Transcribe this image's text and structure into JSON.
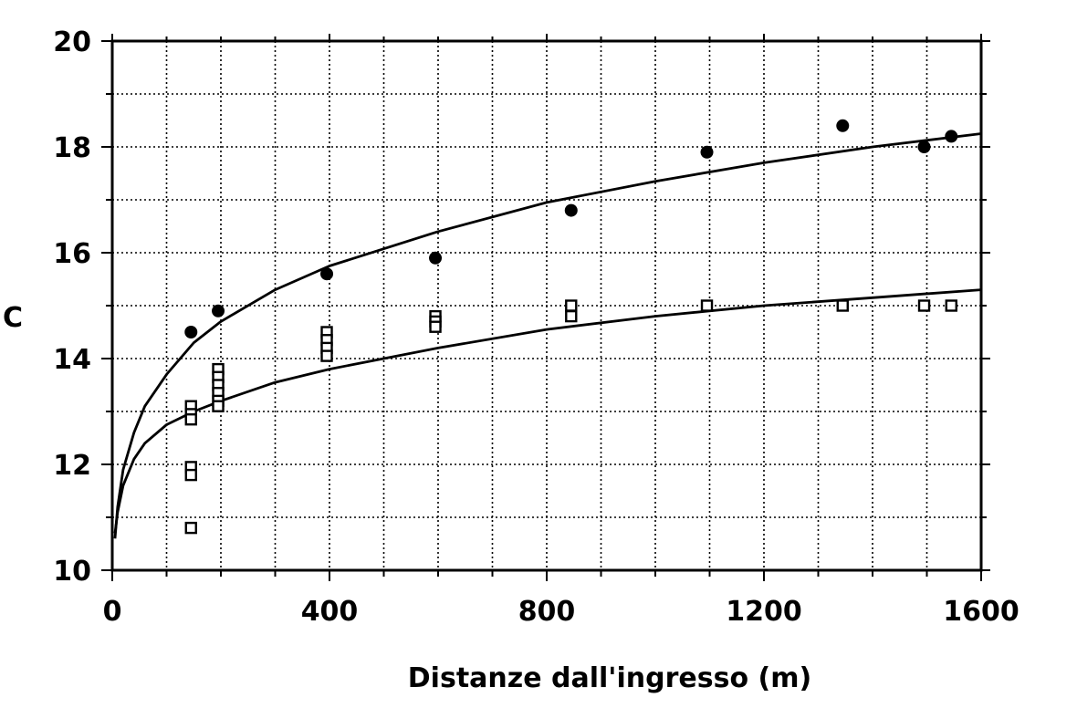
{
  "chart_data": {
    "type": "scatter",
    "title": "",
    "xlabel": "Distanze dall'ingresso (m)",
    "ylabel": "C",
    "xlim": [
      0,
      1600
    ],
    "ylim": [
      10,
      20
    ],
    "x_ticks": [
      "0",
      "400",
      "800",
      "1200",
      "1600"
    ],
    "y_ticks": [
      "10",
      "12",
      "14",
      "16",
      "18",
      "20"
    ],
    "x_minor_step": 100,
    "y_minor_step": 1,
    "grid": true,
    "series": [
      {
        "marker": "filled-circle",
        "points": [
          [
            145,
            14.5
          ],
          [
            195,
            14.9
          ],
          [
            395,
            15.6
          ],
          [
            595,
            15.9
          ],
          [
            845,
            16.8
          ],
          [
            1095,
            17.9
          ],
          [
            1345,
            18.4
          ],
          [
            1495,
            18.0
          ],
          [
            1545,
            18.2
          ]
        ]
      },
      {
        "marker": "open-square",
        "points": [
          [
            145,
            13.1
          ],
          [
            145,
            12.95
          ],
          [
            145,
            12.85
          ],
          [
            145,
            11.95
          ],
          [
            145,
            11.8
          ],
          [
            145,
            10.8
          ],
          [
            195,
            13.8
          ],
          [
            195,
            13.65
          ],
          [
            195,
            13.5
          ],
          [
            195,
            13.35
          ],
          [
            195,
            13.2
          ],
          [
            195,
            13.1
          ],
          [
            395,
            14.5
          ],
          [
            395,
            14.35
          ],
          [
            395,
            14.2
          ],
          [
            395,
            14.05
          ],
          [
            595,
            14.8
          ],
          [
            595,
            14.7
          ],
          [
            595,
            14.6
          ],
          [
            845,
            15.0
          ],
          [
            845,
            14.8
          ],
          [
            1095,
            15.0
          ],
          [
            1345,
            15.0
          ],
          [
            1495,
            15.0
          ],
          [
            1545,
            15.0
          ]
        ]
      }
    ],
    "fit_lines": [
      {
        "kind": "logarithmic",
        "x": [
          5,
          10,
          20,
          40,
          60,
          100,
          150,
          200,
          300,
          400,
          600,
          800,
          1000,
          1200,
          1400,
          1600
        ],
        "y": [
          10.6,
          11.2,
          11.9,
          12.6,
          13.1,
          13.7,
          14.3,
          14.7,
          15.3,
          15.75,
          16.4,
          16.95,
          17.35,
          17.7,
          18.0,
          18.25
        ]
      },
      {
        "kind": "logarithmic",
        "x": [
          5,
          10,
          20,
          40,
          60,
          100,
          150,
          200,
          300,
          400,
          600,
          800,
          1000,
          1200,
          1400,
          1600
        ],
        "y": [
          10.7,
          11.1,
          11.6,
          12.1,
          12.4,
          12.75,
          13.0,
          13.2,
          13.55,
          13.8,
          14.2,
          14.55,
          14.8,
          15.0,
          15.15,
          15.3
        ]
      }
    ]
  }
}
